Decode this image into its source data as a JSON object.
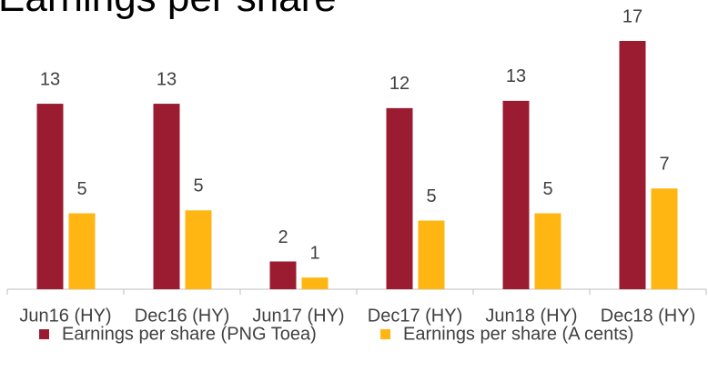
{
  "chart_data": {
    "type": "bar",
    "title": "Earnings per share",
    "categories": [
      "Jun16 (HY)",
      "Dec16 (HY)",
      "Jun17 (HY)",
      "Dec17 (HY)",
      "Jun18 (HY)",
      "Dec18 (HY)"
    ],
    "series": [
      {
        "name": "Earnings per share (PNG Toea)",
        "color": "#9b1c31",
        "values": [
          12.7,
          12.7,
          1.9,
          12.4,
          12.9,
          17.0
        ],
        "value_labels": [
          "13",
          "13",
          "2",
          "12",
          "13",
          "17"
        ]
      },
      {
        "name": "Earnings per share (A cents)",
        "color": "#ffb612",
        "values": [
          5.2,
          5.4,
          0.8,
          4.7,
          5.2,
          6.9
        ],
        "value_labels": [
          "5",
          "5",
          "1",
          "5",
          "5",
          "7"
        ]
      }
    ],
    "legend": "bottom"
  }
}
